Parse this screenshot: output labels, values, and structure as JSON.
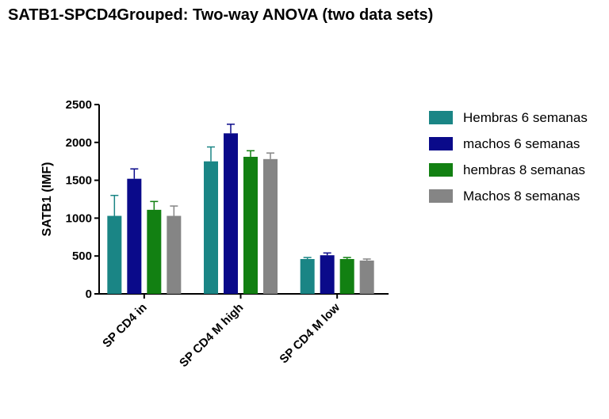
{
  "chart_data": {
    "type": "bar",
    "title": "SATB1-SPCD4Grouped: Two-way ANOVA (two data sets)",
    "ylabel": "SATB1 (IMF)",
    "xlabel": "",
    "ylim": [
      0,
      2500
    ],
    "yticks": [
      0,
      500,
      1000,
      1500,
      2000,
      2500
    ],
    "grid": false,
    "legend_position": "right",
    "categories": [
      "SP CD4 in",
      "SP CD4 M high",
      "SP CD4 M low"
    ],
    "series": [
      {
        "name": "Hembras 6 semanas",
        "color": "#1a8585",
        "values": [
          1030,
          1750,
          460
        ],
        "errors": [
          270,
          190,
          20
        ]
      },
      {
        "name": "machos 6 semanas",
        "color": "#0a0a8a",
        "values": [
          1520,
          2120,
          510
        ],
        "errors": [
          130,
          120,
          30
        ]
      },
      {
        "name": "hembras 8 semanas",
        "color": "#128012",
        "values": [
          1110,
          1810,
          460
        ],
        "errors": [
          110,
          80,
          20
        ]
      },
      {
        "name": "Machos 8 semanas",
        "color": "#858585",
        "values": [
          1030,
          1780,
          440
        ],
        "errors": [
          130,
          80,
          20
        ]
      }
    ]
  }
}
